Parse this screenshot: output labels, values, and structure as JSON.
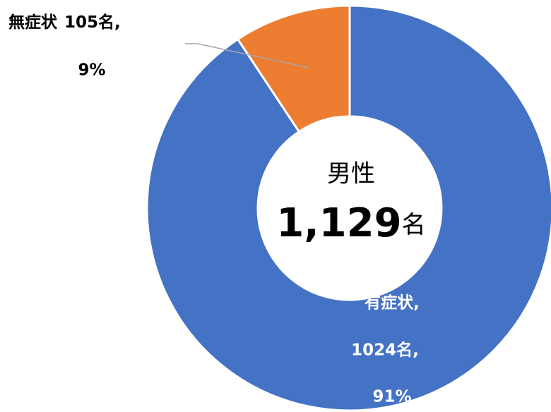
{
  "chart_data": {
    "type": "donut",
    "categories": [
      "有症状,",
      "無症状"
    ],
    "values": [
      1024,
      105
    ],
    "value_labels": [
      "1024名,",
      "105名,"
    ],
    "percents": [
      91,
      9
    ],
    "percent_labels": [
      "91%",
      "9%"
    ],
    "colors": [
      "#4472c4",
      "#ed7d31"
    ],
    "center_title": "男性",
    "total": {
      "value": 1129,
      "label": "1,129"
    },
    "total_unit": "名"
  }
}
